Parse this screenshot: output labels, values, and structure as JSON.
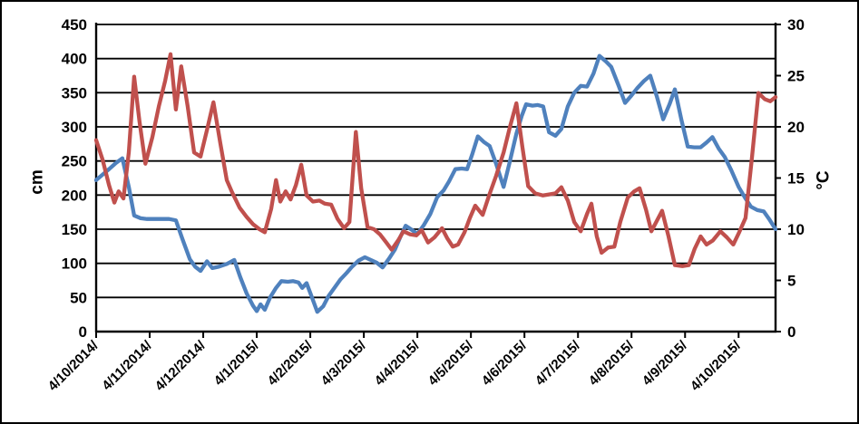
{
  "figure": {
    "background_color": "#ffffff",
    "border_color": "#000000"
  },
  "chart_data": {
    "type": "line",
    "title": "",
    "legend": "none",
    "grid": "horizontal",
    "x_axis": {
      "tick_labels": [
        "4/10/2014/",
        "4/11/2014/",
        "4/12/2014/",
        "4/1/2015/",
        "4/2/2015/",
        "4/3/2015/",
        "4/4/2015/",
        "4/5/2015/",
        "4/6/2015/",
        "4/7/2015/",
        "4/8/2015/",
        "4/9/2015/",
        "4/10/2015/"
      ],
      "x_unit": "months since first tick (4/10/2014)",
      "range": [
        0,
        12.69
      ]
    },
    "y_axis_left": {
      "title": "cm",
      "min": 0,
      "max": 450,
      "step": 50,
      "tick_labels": [
        "0",
        "50",
        "100",
        "150",
        "200",
        "250",
        "300",
        "350",
        "400",
        "450"
      ]
    },
    "y_axis_right": {
      "title": "°C",
      "min": 0,
      "max": 30,
      "step": 5,
      "tick_labels": [
        "0",
        "5",
        "10",
        "15",
        "20",
        "25",
        "30"
      ]
    },
    "series": [
      {
        "name": "blue-line-cm",
        "axis": "left",
        "color": "#4F81BD",
        "points": [
          [
            0,
            222
          ],
          [
            0.12,
            230
          ],
          [
            0.24,
            238
          ],
          [
            0.37,
            247
          ],
          [
            0.49,
            254
          ],
          [
            0.61,
            212
          ],
          [
            0.71,
            170
          ],
          [
            0.83,
            166
          ],
          [
            0.95,
            165
          ],
          [
            1.08,
            165
          ],
          [
            1.22,
            165
          ],
          [
            1.36,
            165
          ],
          [
            1.49,
            163
          ],
          [
            1.61,
            136
          ],
          [
            1.75,
            106
          ],
          [
            1.85,
            95
          ],
          [
            1.95,
            89
          ],
          [
            2.07,
            103
          ],
          [
            2.17,
            93
          ],
          [
            2.29,
            95
          ],
          [
            2.44,
            99
          ],
          [
            2.58,
            105
          ],
          [
            2.69,
            80
          ],
          [
            2.81,
            56
          ],
          [
            2.93,
            38
          ],
          [
            3.0,
            30
          ],
          [
            3.07,
            40
          ],
          [
            3.15,
            32
          ],
          [
            3.25,
            50
          ],
          [
            3.36,
            64
          ],
          [
            3.46,
            74
          ],
          [
            3.58,
            73
          ],
          [
            3.68,
            74
          ],
          [
            3.78,
            72
          ],
          [
            3.85,
            64
          ],
          [
            3.93,
            71
          ],
          [
            4.03,
            50
          ],
          [
            4.13,
            29
          ],
          [
            4.24,
            37
          ],
          [
            4.34,
            52
          ],
          [
            4.46,
            65
          ],
          [
            4.56,
            76
          ],
          [
            4.68,
            86
          ],
          [
            4.78,
            95
          ],
          [
            4.9,
            104
          ],
          [
            5.02,
            109
          ],
          [
            5.13,
            105
          ],
          [
            5.24,
            101
          ],
          [
            5.35,
            94
          ],
          [
            5.47,
            107
          ],
          [
            5.58,
            120
          ],
          [
            5.69,
            140
          ],
          [
            5.78,
            155
          ],
          [
            5.9,
            149
          ],
          [
            6.0,
            143
          ],
          [
            6.12,
            156
          ],
          [
            6.24,
            172
          ],
          [
            6.37,
            197
          ],
          [
            6.49,
            207
          ],
          [
            6.59,
            220
          ],
          [
            6.71,
            238
          ],
          [
            6.83,
            239
          ],
          [
            6.93,
            238
          ],
          [
            7.03,
            261
          ],
          [
            7.13,
            286
          ],
          [
            7.24,
            278
          ],
          [
            7.35,
            272
          ],
          [
            7.47,
            246
          ],
          [
            7.61,
            212
          ],
          [
            7.73,
            250
          ],
          [
            7.85,
            290
          ],
          [
            7.95,
            316
          ],
          [
            8.03,
            333
          ],
          [
            8.15,
            331
          ],
          [
            8.25,
            332
          ],
          [
            8.35,
            330
          ],
          [
            8.46,
            292
          ],
          [
            8.58,
            287
          ],
          [
            8.69,
            297
          ],
          [
            8.81,
            330
          ],
          [
            8.93,
            350
          ],
          [
            9.05,
            360
          ],
          [
            9.17,
            359
          ],
          [
            9.29,
            378
          ],
          [
            9.4,
            404
          ],
          [
            9.52,
            396
          ],
          [
            9.62,
            388
          ],
          [
            9.76,
            360
          ],
          [
            9.88,
            335
          ],
          [
            10.0,
            346
          ],
          [
            10.11,
            357
          ],
          [
            10.23,
            367
          ],
          [
            10.35,
            375
          ],
          [
            10.47,
            345
          ],
          [
            10.59,
            311
          ],
          [
            10.71,
            333
          ],
          [
            10.81,
            355
          ],
          [
            10.93,
            311
          ],
          [
            11.05,
            271
          ],
          [
            11.17,
            270
          ],
          [
            11.29,
            270
          ],
          [
            11.4,
            277
          ],
          [
            11.51,
            285
          ],
          [
            11.63,
            268
          ],
          [
            11.74,
            256
          ],
          [
            11.86,
            237
          ],
          [
            12.0,
            212
          ],
          [
            12.12,
            196
          ],
          [
            12.23,
            183
          ],
          [
            12.35,
            178
          ],
          [
            12.47,
            176
          ],
          [
            12.57,
            165
          ],
          [
            12.69,
            150
          ]
        ]
      },
      {
        "name": "red-line-temperature",
        "axis": "right",
        "color": "#C0504D",
        "points": [
          [
            0,
            18.7
          ],
          [
            0.12,
            16.8
          ],
          [
            0.24,
            14.3
          ],
          [
            0.34,
            12.6
          ],
          [
            0.42,
            13.7
          ],
          [
            0.51,
            13.0
          ],
          [
            0.61,
            17.5
          ],
          [
            0.71,
            24.9
          ],
          [
            0.81,
            20.5
          ],
          [
            0.92,
            16.4
          ],
          [
            1.05,
            19.0
          ],
          [
            1.17,
            22.0
          ],
          [
            1.29,
            24.5
          ],
          [
            1.39,
            27.1
          ],
          [
            1.49,
            21.7
          ],
          [
            1.59,
            25.9
          ],
          [
            1.71,
            22.0
          ],
          [
            1.83,
            17.5
          ],
          [
            1.95,
            17.1
          ],
          [
            2.07,
            19.7
          ],
          [
            2.19,
            22.4
          ],
          [
            2.32,
            18.4
          ],
          [
            2.44,
            14.8
          ],
          [
            2.54,
            13.6
          ],
          [
            2.68,
            12.1
          ],
          [
            2.81,
            11.2
          ],
          [
            2.93,
            10.5
          ],
          [
            3.05,
            10.0
          ],
          [
            3.15,
            9.7
          ],
          [
            3.27,
            12.0
          ],
          [
            3.36,
            14.8
          ],
          [
            3.44,
            12.7
          ],
          [
            3.54,
            13.7
          ],
          [
            3.63,
            12.9
          ],
          [
            3.73,
            14.3
          ],
          [
            3.83,
            16.3
          ],
          [
            3.93,
            13.3
          ],
          [
            4.05,
            12.7
          ],
          [
            4.17,
            12.8
          ],
          [
            4.27,
            12.5
          ],
          [
            4.39,
            12.4
          ],
          [
            4.51,
            11.0
          ],
          [
            4.63,
            10.1
          ],
          [
            4.73,
            10.7
          ],
          [
            4.85,
            19.5
          ],
          [
            4.95,
            14.0
          ],
          [
            5.07,
            10.2
          ],
          [
            5.19,
            10.0
          ],
          [
            5.3,
            9.5
          ],
          [
            5.42,
            8.7
          ],
          [
            5.52,
            8.0
          ],
          [
            5.64,
            8.9
          ],
          [
            5.74,
            9.8
          ],
          [
            5.86,
            9.5
          ],
          [
            5.98,
            9.4
          ],
          [
            6.08,
            9.9
          ],
          [
            6.2,
            8.7
          ],
          [
            6.32,
            9.2
          ],
          [
            6.46,
            10.1
          ],
          [
            6.56,
            9.1
          ],
          [
            6.66,
            8.3
          ],
          [
            6.76,
            8.5
          ],
          [
            6.88,
            9.7
          ],
          [
            6.98,
            11.1
          ],
          [
            7.08,
            12.3
          ],
          [
            7.22,
            11.4
          ],
          [
            7.34,
            13.3
          ],
          [
            7.47,
            15.2
          ],
          [
            7.61,
            17.5
          ],
          [
            7.73,
            20.0
          ],
          [
            7.85,
            22.3
          ],
          [
            7.96,
            18.1
          ],
          [
            8.07,
            14.2
          ],
          [
            8.2,
            13.5
          ],
          [
            8.34,
            13.3
          ],
          [
            8.46,
            13.4
          ],
          [
            8.58,
            13.5
          ],
          [
            8.69,
            14.1
          ],
          [
            8.81,
            12.8
          ],
          [
            8.93,
            10.7
          ],
          [
            9.05,
            9.8
          ],
          [
            9.17,
            11.5
          ],
          [
            9.25,
            12.5
          ],
          [
            9.35,
            9.3
          ],
          [
            9.44,
            7.7
          ],
          [
            9.56,
            8.2
          ],
          [
            9.68,
            8.3
          ],
          [
            9.79,
            10.7
          ],
          [
            9.93,
            13.1
          ],
          [
            10.05,
            13.7
          ],
          [
            10.15,
            14.0
          ],
          [
            10.27,
            11.9
          ],
          [
            10.37,
            9.8
          ],
          [
            10.47,
            10.8
          ],
          [
            10.57,
            11.8
          ],
          [
            10.69,
            9.3
          ],
          [
            10.81,
            6.5
          ],
          [
            10.95,
            6.4
          ],
          [
            11.07,
            6.5
          ],
          [
            11.18,
            8.1
          ],
          [
            11.29,
            9.3
          ],
          [
            11.4,
            8.5
          ],
          [
            11.52,
            8.9
          ],
          [
            11.66,
            9.8
          ],
          [
            11.78,
            9.2
          ],
          [
            11.9,
            8.5
          ],
          [
            12.01,
            9.7
          ],
          [
            12.13,
            11.1
          ],
          [
            12.25,
            17.0
          ],
          [
            12.37,
            23.3
          ],
          [
            12.49,
            22.7
          ],
          [
            12.59,
            22.5
          ],
          [
            12.69,
            22.9
          ]
        ]
      }
    ]
  }
}
